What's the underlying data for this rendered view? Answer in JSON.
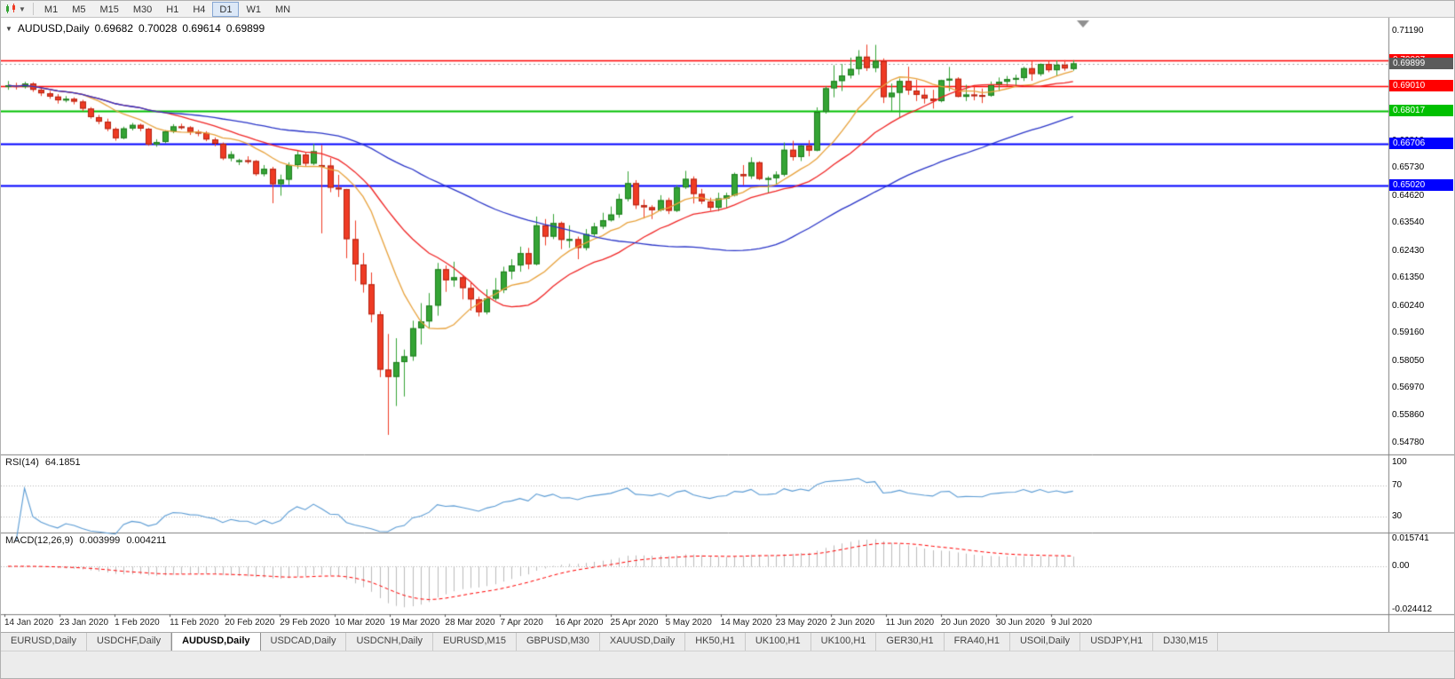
{
  "toolbar": {
    "timeframes": [
      "M1",
      "M5",
      "M15",
      "M30",
      "H1",
      "H4",
      "D1",
      "W1",
      "MN"
    ],
    "active": "D1"
  },
  "chart": {
    "title": {
      "symbol_period": "AUDUSD,Daily",
      "open": "0.69682",
      "high": "0.70028",
      "low": "0.69614",
      "close": "0.69899"
    }
  },
  "chart_data": {
    "type": "candlestick",
    "symbol": "AUDUSD",
    "timeframe": "Daily",
    "ylim": [
      0.5478,
      0.7119
    ],
    "x_ticks": [
      "14 Jan 2020",
      "23 Jan 2020",
      "1 Feb 2020",
      "11 Feb 2020",
      "20 Feb 2020",
      "29 Feb 2020",
      "10 Mar 2020",
      "19 Mar 2020",
      "28 Mar 2020",
      "7 Apr 2020",
      "16 Apr 2020",
      "25 Apr 2020",
      "5 May 2020",
      "14 May 2020",
      "23 May 2020",
      "2 Jun 2020",
      "11 Jun 2020",
      "20 Jun 2020",
      "30 Jun 2020",
      "9 Jul 2020"
    ],
    "y_ticks": [
      {
        "label": "0.71190",
        "value": 0.7119
      },
      {
        "label": "0.70110",
        "value": 0.7011
      },
      {
        "label": "0.69000",
        "value": 0.69
      },
      {
        "label": "0.67920",
        "value": 0.6792
      },
      {
        "label": "0.66810",
        "value": 0.6681
      },
      {
        "label": "0.65730",
        "value": 0.6573
      },
      {
        "label": "0.64620",
        "value": 0.6462
      },
      {
        "label": "0.63540",
        "value": 0.6354
      },
      {
        "label": "0.62430",
        "value": 0.6243
      },
      {
        "label": "0.61350",
        "value": 0.6135
      },
      {
        "label": "0.60240",
        "value": 0.6024
      },
      {
        "label": "0.59160",
        "value": 0.5916
      },
      {
        "label": "0.58050",
        "value": 0.5805
      },
      {
        "label": "0.56970",
        "value": 0.5697
      },
      {
        "label": "0.55860",
        "value": 0.5586
      },
      {
        "label": "0.54780",
        "value": 0.5478
      }
    ],
    "levels": [
      {
        "label": "0.70007",
        "value": 0.70007,
        "color": "#ff0000",
        "width": 1.4
      },
      {
        "label": "0.69010",
        "value": 0.6901,
        "color": "#ff0000",
        "width": 1.4
      },
      {
        "label": "0.68017",
        "value": 0.68017,
        "color": "#00c000",
        "width": 2
      },
      {
        "label": "0.66706",
        "value": 0.66706,
        "color": "#0000ff",
        "width": 2
      },
      {
        "label": "0.65020",
        "value": 0.6502,
        "color": "#0000ff",
        "width": 2
      }
    ],
    "current_price": {
      "label": "0.69899",
      "value": 0.69899,
      "color": "#5b5b5b"
    },
    "candle_colors": {
      "up": "#35a435",
      "up_border": "#1e7d1e",
      "down": "#ef3b24",
      "down_border": "#b32413"
    },
    "moving_averages": [
      {
        "period": 10,
        "color": "#e8a23c"
      },
      {
        "period": 20,
        "color": "#f02525"
      },
      {
        "period": 50,
        "color": "#2a35c8"
      }
    ],
    "rsi": {
      "label": "RSI(14)",
      "value": "64.1851",
      "period": 14,
      "color": "#5a9bd4",
      "levels": [
        {
          "label": "100",
          "value": 100
        },
        {
          "label": "70",
          "value": 70
        },
        {
          "label": "30",
          "value": 30
        }
      ]
    },
    "macd": {
      "label": "MACD(12,26,9)",
      "value_main": "0.003999",
      "value_signal": "0.004211",
      "params": [
        12,
        26,
        9
      ],
      "hist_color": "#bbbbbb",
      "signal_color": "#ff0000",
      "axis": [
        {
          "label": "0.015741",
          "value": 0.015741
        },
        {
          "label": "0.00",
          "value": 0
        },
        {
          "label": "-0.024412",
          "value": -0.024412
        }
      ]
    },
    "ohlc": [
      [
        0.69,
        0.692,
        0.6885,
        0.6903
      ],
      [
        0.6903,
        0.6913,
        0.6886,
        0.6896
      ],
      [
        0.6896,
        0.6917,
        0.689,
        0.691
      ],
      [
        0.691,
        0.6915,
        0.6877,
        0.6885
      ],
      [
        0.6885,
        0.6895,
        0.686,
        0.6871
      ],
      [
        0.6871,
        0.688,
        0.6849,
        0.6858
      ],
      [
        0.6858,
        0.6868,
        0.683,
        0.6843
      ],
      [
        0.6843,
        0.686,
        0.6835,
        0.6849
      ],
      [
        0.6849,
        0.6855,
        0.6827,
        0.6838
      ],
      [
        0.6838,
        0.6845,
        0.68,
        0.681
      ],
      [
        0.681,
        0.6816,
        0.677,
        0.6776
      ],
      [
        0.6776,
        0.6785,
        0.6748,
        0.6758
      ],
      [
        0.6758,
        0.677,
        0.672,
        0.6729
      ],
      [
        0.6729,
        0.6735,
        0.6682,
        0.6692
      ],
      [
        0.6692,
        0.6738,
        0.6688,
        0.6731
      ],
      [
        0.6731,
        0.6753,
        0.6723,
        0.6745
      ],
      [
        0.6745,
        0.675,
        0.672,
        0.673
      ],
      [
        0.673,
        0.6733,
        0.6662,
        0.6667
      ],
      [
        0.6667,
        0.6688,
        0.6658,
        0.6677
      ],
      [
        0.6677,
        0.6724,
        0.6672,
        0.6719
      ],
      [
        0.6719,
        0.6748,
        0.6712,
        0.6739
      ],
      [
        0.6739,
        0.675,
        0.6727,
        0.6735
      ],
      [
        0.6735,
        0.674,
        0.6705,
        0.6717
      ],
      [
        0.6717,
        0.6725,
        0.67,
        0.6713
      ],
      [
        0.6713,
        0.672,
        0.668,
        0.6687
      ],
      [
        0.6687,
        0.6695,
        0.666,
        0.667
      ],
      [
        0.667,
        0.6675,
        0.6605,
        0.6612
      ],
      [
        0.6612,
        0.664,
        0.66,
        0.6628
      ],
      [
        0.66,
        0.661,
        0.6585,
        0.6604
      ],
      [
        0.6604,
        0.662,
        0.659,
        0.6601
      ],
      [
        0.6601,
        0.6605,
        0.6542,
        0.6549
      ],
      [
        0.6549,
        0.6585,
        0.654,
        0.657
      ],
      [
        0.657,
        0.6578,
        0.6433,
        0.6509
      ],
      [
        0.6509,
        0.6547,
        0.6463,
        0.6527
      ],
      [
        0.6527,
        0.6596,
        0.6506,
        0.6585
      ],
      [
        0.6585,
        0.6645,
        0.657,
        0.6627
      ],
      [
        0.6627,
        0.6637,
        0.658,
        0.6591
      ],
      [
        0.6591,
        0.667,
        0.6585,
        0.664
      ],
      [
        0.6585,
        0.6665,
        0.6313,
        0.6583
      ],
      [
        0.6583,
        0.6613,
        0.6477,
        0.6495
      ],
      [
        0.6495,
        0.6546,
        0.6458,
        0.6489
      ],
      [
        0.6489,
        0.649,
        0.6214,
        0.629
      ],
      [
        0.629,
        0.6364,
        0.6123,
        0.6189
      ],
      [
        0.6189,
        0.6235,
        0.6077,
        0.611
      ],
      [
        0.611,
        0.6157,
        0.5958,
        0.599
      ],
      [
        0.599,
        0.6002,
        0.574,
        0.577
      ],
      [
        0.577,
        0.5912,
        0.551,
        0.5741
      ],
      [
        0.5741,
        0.5895,
        0.5625,
        0.58
      ],
      [
        0.58,
        0.585,
        0.5663,
        0.5823
      ],
      [
        0.5823,
        0.5965,
        0.5805,
        0.5935
      ],
      [
        0.5935,
        0.6035,
        0.587,
        0.5962
      ],
      [
        0.5962,
        0.6075,
        0.5935,
        0.6025
      ],
      [
        0.6025,
        0.6195,
        0.5985,
        0.617
      ],
      [
        0.617,
        0.6185,
        0.608,
        0.6126
      ],
      [
        0.6126,
        0.62,
        0.61,
        0.6138
      ],
      [
        0.6138,
        0.6145,
        0.605,
        0.6095
      ],
      [
        0.6095,
        0.6115,
        0.6005,
        0.605
      ],
      [
        0.605,
        0.606,
        0.5982,
        0.5999
      ],
      [
        0.5999,
        0.609,
        0.599,
        0.6053
      ],
      [
        0.6053,
        0.6135,
        0.6045,
        0.6087
      ],
      [
        0.6087,
        0.618,
        0.6075,
        0.6161
      ],
      [
        0.6161,
        0.621,
        0.613,
        0.6185
      ],
      [
        0.6185,
        0.626,
        0.616,
        0.6234
      ],
      [
        0.6234,
        0.6255,
        0.617,
        0.619
      ],
      [
        0.619,
        0.638,
        0.6185,
        0.6345
      ],
      [
        0.6345,
        0.637,
        0.6265,
        0.63
      ],
      [
        0.63,
        0.639,
        0.629,
        0.6354
      ],
      [
        0.6354,
        0.636,
        0.625,
        0.6287
      ],
      [
        0.6287,
        0.6345,
        0.6255,
        0.629
      ],
      [
        0.629,
        0.63,
        0.621,
        0.6255
      ],
      [
        0.6255,
        0.633,
        0.6245,
        0.631
      ],
      [
        0.631,
        0.6355,
        0.63,
        0.634
      ],
      [
        0.634,
        0.6395,
        0.633,
        0.6365
      ],
      [
        0.6365,
        0.642,
        0.636,
        0.6388
      ],
      [
        0.6388,
        0.647,
        0.6375,
        0.645
      ],
      [
        0.645,
        0.656,
        0.644,
        0.6513
      ],
      [
        0.6513,
        0.6525,
        0.641,
        0.6425
      ],
      [
        0.6425,
        0.6448,
        0.6372,
        0.6417
      ],
      [
        0.6417,
        0.6425,
        0.637,
        0.6405
      ],
      [
        0.6405,
        0.6465,
        0.64,
        0.6445
      ],
      [
        0.6445,
        0.6455,
        0.639,
        0.6403
      ],
      [
        0.6403,
        0.6505,
        0.6398,
        0.6496
      ],
      [
        0.6496,
        0.6562,
        0.649,
        0.653
      ],
      [
        0.653,
        0.654,
        0.6432,
        0.647
      ],
      [
        0.647,
        0.649,
        0.643,
        0.644
      ],
      [
        0.644,
        0.6455,
        0.6403,
        0.6415
      ],
      [
        0.6415,
        0.6475,
        0.6402,
        0.6452
      ],
      [
        0.6452,
        0.6475,
        0.6415,
        0.6464
      ],
      [
        0.6464,
        0.6555,
        0.646,
        0.6549
      ],
      [
        0.6549,
        0.6585,
        0.6505,
        0.6541
      ],
      [
        0.6541,
        0.6616,
        0.653,
        0.6596
      ],
      [
        0.6596,
        0.66,
        0.6525,
        0.653
      ],
      [
        0.653,
        0.654,
        0.6475,
        0.6533
      ],
      [
        0.6533,
        0.656,
        0.651,
        0.6547
      ],
      [
        0.6547,
        0.6675,
        0.654,
        0.6646
      ],
      [
        0.6646,
        0.6682,
        0.6603,
        0.6617
      ],
      [
        0.6617,
        0.6665,
        0.6601,
        0.6663
      ],
      [
        0.6663,
        0.6684,
        0.662,
        0.6643
      ],
      [
        0.6643,
        0.6815,
        0.664,
        0.6797
      ],
      [
        0.6797,
        0.69,
        0.679,
        0.6891
      ],
      [
        0.6891,
        0.6983,
        0.6855,
        0.692
      ],
      [
        0.692,
        0.6988,
        0.688,
        0.6942
      ],
      [
        0.6942,
        0.7013,
        0.693,
        0.6968
      ],
      [
        0.6968,
        0.7043,
        0.6945,
        0.7017
      ],
      [
        0.7017,
        0.7065,
        0.696,
        0.6972
      ],
      [
        0.6972,
        0.7064,
        0.6955,
        0.7
      ],
      [
        0.7,
        0.701,
        0.6832,
        0.6856
      ],
      [
        0.6856,
        0.691,
        0.68,
        0.6873
      ],
      [
        0.6873,
        0.693,
        0.6776,
        0.692
      ],
      [
        0.692,
        0.6977,
        0.6865,
        0.6882
      ],
      [
        0.6882,
        0.6925,
        0.684,
        0.6865
      ],
      [
        0.6865,
        0.689,
        0.683,
        0.685
      ],
      [
        0.685,
        0.6885,
        0.681,
        0.684
      ],
      [
        0.684,
        0.6925,
        0.6835,
        0.6923
      ],
      [
        0.6923,
        0.6976,
        0.688,
        0.6929
      ],
      [
        0.6929,
        0.6935,
        0.6855,
        0.6857
      ],
      [
        0.6857,
        0.6905,
        0.684,
        0.6866
      ],
      [
        0.6866,
        0.6902,
        0.6843,
        0.6864
      ],
      [
        0.6864,
        0.689,
        0.6832,
        0.6862
      ],
      [
        0.6862,
        0.6918,
        0.6857,
        0.6905
      ],
      [
        0.6905,
        0.6934,
        0.688,
        0.6917
      ],
      [
        0.6917,
        0.694,
        0.69,
        0.6928
      ],
      [
        0.6928,
        0.6945,
        0.6902,
        0.6932
      ],
      [
        0.6932,
        0.6977,
        0.692,
        0.6971
      ],
      [
        0.6971,
        0.6998,
        0.6921,
        0.6948
      ],
      [
        0.6948,
        0.699,
        0.694,
        0.6988
      ],
      [
        0.6988,
        0.7,
        0.6955,
        0.6963
      ],
      [
        0.6963,
        0.7002,
        0.6941,
        0.6985
      ],
      [
        0.6985,
        0.7003,
        0.6961,
        0.697
      ],
      [
        0.6968,
        0.7003,
        0.6961,
        0.699
      ]
    ]
  },
  "tabs": {
    "items": [
      "EURUSD,Daily",
      "USDCHF,Daily",
      "AUDUSD,Daily",
      "USDCAD,Daily",
      "USDCNH,Daily",
      "EURUSD,M15",
      "GBPUSD,M30",
      "XAUUSD,Daily",
      "HK50,H1",
      "UK100,H1",
      "UK100,H1",
      "GER30,H1",
      "FRA40,H1",
      "USOil,Daily",
      "USDJPY,H1",
      "DJ30,M15"
    ],
    "active_index": 2
  }
}
